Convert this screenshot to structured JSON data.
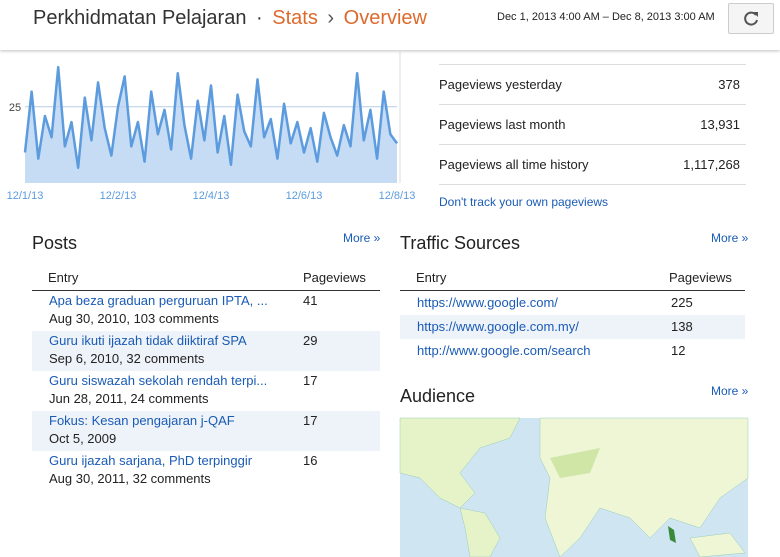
{
  "header": {
    "blog_title": "Perkhidmatan Pelajaran",
    "separator": "·",
    "section": "Stats",
    "crumb_separator": "›",
    "page": "Overview",
    "date_range": "Dec 1, 2013 4:00 AM – Dec 8, 2013 3:00 AM"
  },
  "chart_data": {
    "type": "area",
    "color": "#5b9bde",
    "fill": "#c6dcf5",
    "categories": [
      "12/1/13",
      null,
      null,
      null,
      null,
      null,
      null,
      null,
      null,
      null,
      null,
      null,
      null,
      null,
      "12/2/13",
      null,
      null,
      null,
      null,
      null,
      null,
      null,
      null,
      null,
      null,
      null,
      null,
      null,
      "12/4/13",
      null,
      null,
      null,
      null,
      null,
      null,
      null,
      null,
      null,
      null,
      null,
      null,
      null,
      "12/6/13",
      null,
      null,
      null,
      null,
      null,
      null,
      null,
      null,
      null,
      null,
      null,
      null,
      null,
      "12/8/13"
    ],
    "values": [
      10,
      30,
      8,
      22,
      15,
      38,
      12,
      20,
      5,
      28,
      14,
      33,
      18,
      9,
      25,
      35,
      12,
      20,
      7,
      30,
      16,
      24,
      11,
      36,
      19,
      8,
      27,
      14,
      32,
      10,
      22,
      6,
      29,
      17,
      12,
      34,
      15,
      21,
      8,
      26,
      13,
      20,
      10,
      18,
      7,
      23,
      15,
      9,
      19,
      12,
      36,
      14,
      24,
      8,
      30,
      16,
      13
    ],
    "ylim": [
      0,
      42
    ],
    "yticks": [
      25
    ]
  },
  "summary": {
    "rows": [
      [
        "Pageviews yesterday",
        "378"
      ],
      [
        "Pageviews last month",
        "13,931"
      ],
      [
        "Pageviews all time history",
        "1,117,268"
      ]
    ],
    "link": "Don't track your own pageviews"
  },
  "posts": {
    "title": "Posts",
    "more": "More »",
    "columns": [
      "Entry",
      "Pageviews"
    ],
    "rows": [
      {
        "title": "Apa beza graduan perguruan IPTA, ...",
        "meta": "Aug 30, 2010, 103 comments",
        "pageviews": 41
      },
      {
        "title": "Guru ikuti ijazah tidak diiktiraf SPA",
        "meta": "Sep 6, 2010, 32 comments",
        "pageviews": 29
      },
      {
        "title": "Guru siswazah sekolah rendah terpi...",
        "meta": "Jun 28, 2011, 24 comments",
        "pageviews": 17
      },
      {
        "title": "Fokus: Kesan pengajaran j-QAF",
        "meta": "Oct 5, 2009",
        "pageviews": 17
      },
      {
        "title": "Guru ijazah sarjana, PhD terpinggir",
        "meta": "Aug 30, 2011, 32 comments",
        "pageviews": 16
      }
    ]
  },
  "traffic_sources": {
    "title": "Traffic Sources",
    "more": "More »",
    "columns": [
      "Entry",
      "Pageviews"
    ],
    "rows": [
      {
        "url": "https://www.google.com/",
        "pageviews": 225
      },
      {
        "url": "https://www.google.com.my/",
        "pageviews": 138
      },
      {
        "url": "http://www.google.com/search",
        "pageviews": 12
      }
    ]
  },
  "audience": {
    "title": "Audience",
    "more": "More »"
  }
}
